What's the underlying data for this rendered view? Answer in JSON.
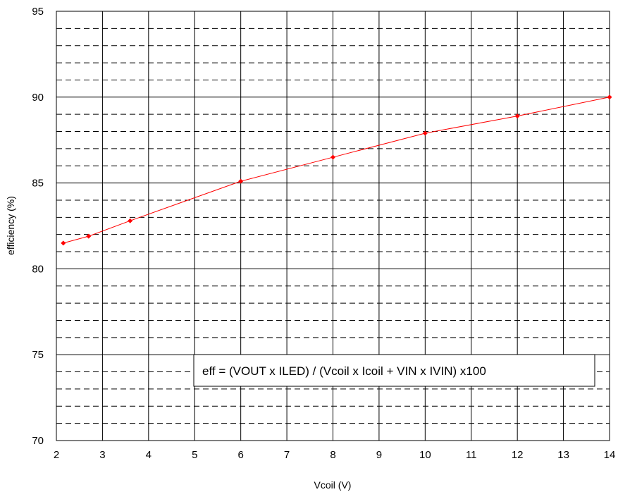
{
  "chart_data": {
    "type": "line",
    "title": "",
    "xlabel": "Vcoil (V)",
    "ylabel": "efficiency (%)",
    "xlim": [
      2,
      14
    ],
    "ylim": [
      70,
      95
    ],
    "x_ticks": [
      2,
      3,
      4,
      5,
      6,
      7,
      8,
      9,
      10,
      11,
      12,
      13,
      14
    ],
    "y_ticks": [
      70,
      75,
      80,
      85,
      90,
      95
    ],
    "grid": true,
    "minor_grid_y_step": 1,
    "annotation": "eff = (VOUT x ILED) / (Vcoil x Icoil + VIN x IVIN) x100",
    "series": [
      {
        "color": "#ff0000",
        "x": [
          2.15,
          2.7,
          3.6,
          6,
          8,
          10,
          12,
          14
        ],
        "y": [
          81.5,
          81.9,
          82.8,
          85.1,
          86.5,
          87.9,
          88.9,
          90.0
        ]
      }
    ]
  }
}
